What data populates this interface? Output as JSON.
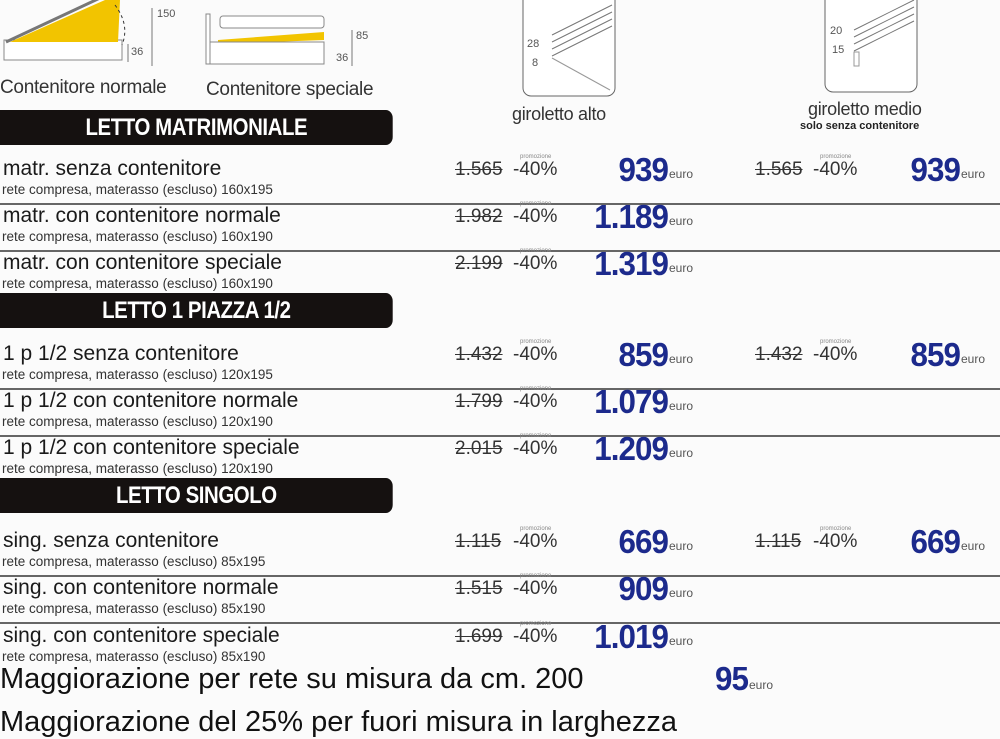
{
  "legend": {
    "normal": {
      "label": "Contenitore normale",
      "dims": [
        "150",
        "36"
      ]
    },
    "special": {
      "label": "Contenitore speciale",
      "dims": [
        "85",
        "36"
      ]
    },
    "alto": {
      "label": "giroletto alto",
      "dims": [
        "28",
        "8"
      ]
    },
    "medio": {
      "label": "giroletto medio",
      "note": "solo senza contenitore",
      "dims": [
        "20",
        "15"
      ]
    }
  },
  "colors": {
    "price": "#1c2a8c",
    "header_bg": "#151110",
    "storage_yellow": "#f2c400"
  },
  "promo_label": "promozione",
  "currency": "euro",
  "sections": [
    {
      "title": "LETTO MATRIMONIALE",
      "rows": [
        {
          "name": "matr. senza contenitore",
          "sub": "rete compresa, materasso (escluso) 160x195",
          "alto": {
            "old": "1.565",
            "discount": "-40%",
            "price": "939"
          },
          "medio": {
            "old": "1.565",
            "discount": "-40%",
            "price": "939"
          }
        },
        {
          "name": "matr. con contenitore normale",
          "sub": "rete compresa, materasso (escluso) 160x190",
          "alto": {
            "old": "1.982",
            "discount": "-40%",
            "price": "1.189"
          }
        },
        {
          "name": "matr. con contenitore speciale",
          "sub": "rete compresa, materasso (escluso) 160x190",
          "alto": {
            "old": "2.199",
            "discount": "-40%",
            "price": "1.319"
          }
        }
      ]
    },
    {
      "title": "LETTO 1 PIAZZA 1/2",
      "rows": [
        {
          "name": "1 p 1/2 senza contenitore",
          "sub": "rete compresa, materasso (escluso) 120x195",
          "alto": {
            "old": "1.432",
            "discount": "-40%",
            "price": "859"
          },
          "medio": {
            "old": "1.432",
            "discount": "-40%",
            "price": "859"
          }
        },
        {
          "name": "1 p 1/2 con contenitore normale",
          "sub": "rete compresa, materasso (escluso) 120x190",
          "alto": {
            "old": "1.799",
            "discount": "-40%",
            "price": "1.079"
          }
        },
        {
          "name": "1 p 1/2 con contenitore speciale",
          "sub": "rete compresa, materasso (escluso) 120x190",
          "alto": {
            "old": "2.015",
            "discount": "-40%",
            "price": "1.209"
          }
        }
      ]
    },
    {
      "title": "LETTO SINGOLO",
      "rows": [
        {
          "name": "sing. senza contenitore",
          "sub": "rete compresa, materasso (escluso) 85x195",
          "alto": {
            "old": "1.115",
            "discount": "-40%",
            "price": "669"
          },
          "medio": {
            "old": "1.115",
            "discount": "-40%",
            "price": "669"
          }
        },
        {
          "name": "sing. con contenitore normale",
          "sub": "rete compresa, materasso (escluso) 85x190",
          "alto": {
            "old": "1.515",
            "discount": "-40%",
            "price": "909"
          }
        },
        {
          "name": "sing. con contenitore speciale",
          "sub": "rete compresa, materasso (escluso) 85x190",
          "alto": {
            "old": "1.699",
            "discount": "-40%",
            "price": "1.019"
          }
        }
      ]
    }
  ],
  "footer": {
    "line1": "Maggiorazione per rete su misura da cm. 200",
    "line1_price": "95",
    "line2": "Maggiorazione del 25% per fuori misura in larghezza"
  }
}
